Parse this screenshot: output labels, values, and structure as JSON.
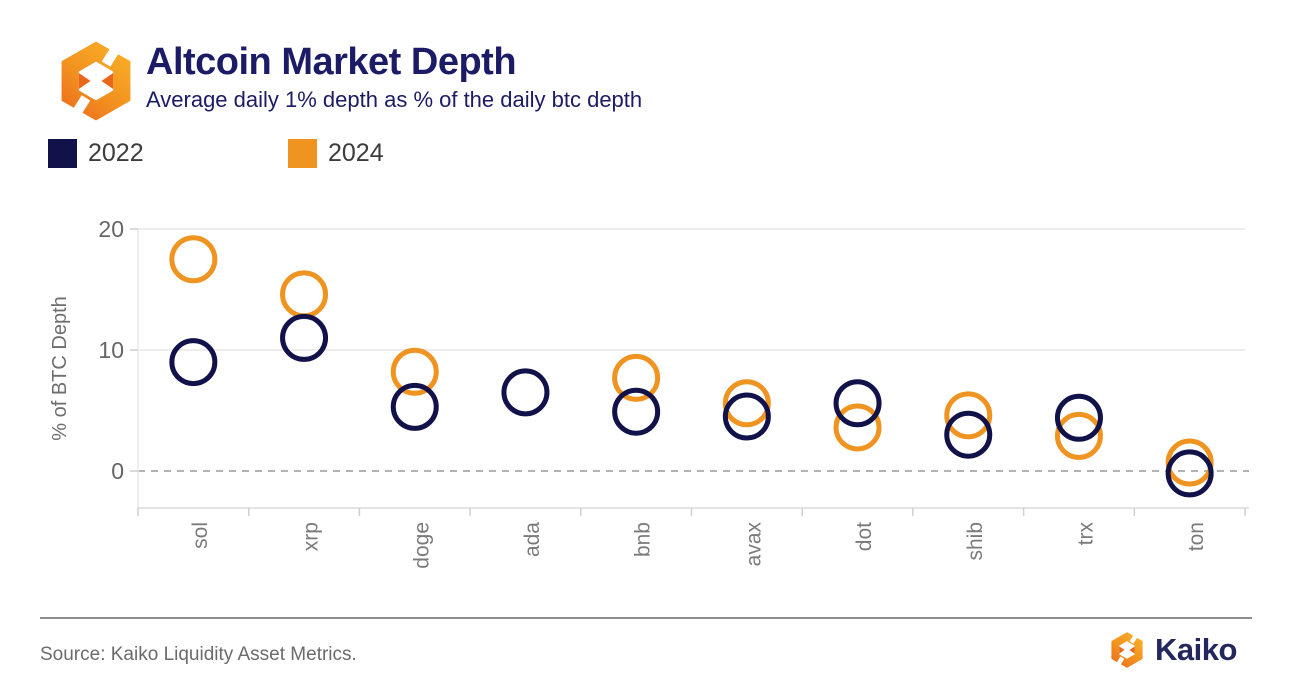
{
  "header": {
    "title": "Altcoin Market Depth",
    "subtitle": "Average daily 1% depth as % of the daily btc depth"
  },
  "legend": {
    "items": [
      {
        "label": "2022",
        "color": "#12124a"
      },
      {
        "label": "2024",
        "color": "#ef9421"
      }
    ]
  },
  "chart_data": {
    "type": "scatter",
    "marker": "open-circle",
    "categories": [
      "sol",
      "xrp",
      "doge",
      "ada",
      "bnb",
      "avax",
      "dot",
      "shib",
      "trx",
      "ton"
    ],
    "series": [
      {
        "name": "2022",
        "color": "#12124a",
        "values": [
          9.0,
          11.0,
          5.3,
          6.5,
          4.9,
          4.5,
          5.6,
          3.0,
          4.4,
          -0.2
        ]
      },
      {
        "name": "2024",
        "color": "#ef9421",
        "values": [
          17.5,
          14.6,
          8.2,
          null,
          7.7,
          5.6,
          3.6,
          4.6,
          2.9,
          0.7
        ]
      }
    ],
    "ylabel": "% of BTC Depth",
    "yticks": [
      0,
      10,
      20
    ],
    "ylim": [
      -3.1,
      21.7
    ],
    "grid": "horizontal",
    "zero_line": "dashed",
    "legend_position": "top-left"
  },
  "footer": {
    "source": "Source: Kaiko Liquidity Asset Metrics.",
    "brand": "Kaiko"
  }
}
